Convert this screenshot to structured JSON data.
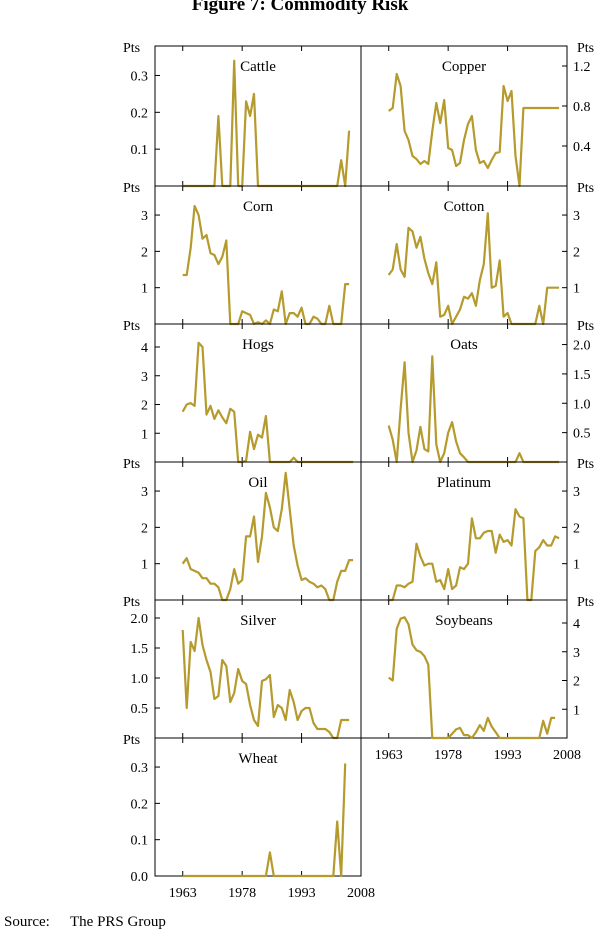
{
  "title": "Figure 7: Commodity Risk",
  "source": {
    "label": "Source:",
    "text": "The PRS Group"
  },
  "chart_data": {
    "type": "line",
    "series_color": "#B59A2E",
    "unit_label": "Pts",
    "x_ticks": [
      1963,
      1978,
      1993,
      2008
    ],
    "xlim": [
      1956,
      2008
    ],
    "panels": [
      {
        "name": "Cattle",
        "ylim": [
          0,
          0.38
        ],
        "ticks": [
          "0.1",
          "0.2",
          "0.3"
        ],
        "tick_values": [
          0.1,
          0.2,
          0.3
        ],
        "x": [
          1963,
          1971,
          1972,
          1973,
          1974,
          1975,
          1976,
          1977,
          1978,
          1979,
          1980,
          1981,
          1982,
          1983,
          2002,
          2003,
          2004,
          2005
        ],
        "y": [
          0,
          0,
          0.19,
          0,
          0,
          0,
          0.34,
          0,
          0,
          0.23,
          0.19,
          0.25,
          0,
          0,
          0,
          0.07,
          0,
          0.15
        ]
      },
      {
        "name": "Copper",
        "ylim": [
          0,
          1.4
        ],
        "ticks": [
          "0.4",
          "0.8",
          "1.2"
        ],
        "tick_values": [
          0.4,
          0.8,
          1.2
        ],
        "x": [
          1963,
          1964,
          1965,
          1966,
          1967,
          1968,
          1969,
          1970,
          1971,
          1972,
          1973,
          1974,
          1975,
          1976,
          1977,
          1978,
          1979,
          1980,
          1981,
          1982,
          1983,
          1984,
          1985,
          1986,
          1987,
          1988,
          1989,
          1990,
          1991,
          1992,
          1993,
          1994,
          1995,
          1996,
          1997,
          1998,
          1999,
          2000,
          2001,
          2002,
          2003,
          2004,
          2005,
          2006
        ],
        "y": [
          0.75,
          0.78,
          1.12,
          1.0,
          0.55,
          0.46,
          0.3,
          0.27,
          0.22,
          0.25,
          0.22,
          0.55,
          0.83,
          0.63,
          0.86,
          0.38,
          0.36,
          0.2,
          0.23,
          0.46,
          0.62,
          0.7,
          0.36,
          0.23,
          0.25,
          0.18,
          0.26,
          0.33,
          0.34,
          1.0,
          0.85,
          0.95,
          0.3,
          0,
          0.78,
          0.78,
          0.78,
          0.78,
          0.78,
          0.78,
          0.78,
          0.78,
          0.78,
          0.78
        ]
      },
      {
        "name": "Corn",
        "ylim": [
          0,
          3.8
        ],
        "ticks": [
          "1",
          "2",
          "3"
        ],
        "tick_values": [
          1,
          2,
          3
        ],
        "x": [
          1963,
          1964,
          1965,
          1966,
          1967,
          1968,
          1969,
          1970,
          1971,
          1972,
          1973,
          1974,
          1975,
          1976,
          1977,
          1978,
          1979,
          1980,
          1981,
          1982,
          1983,
          1984,
          1985,
          1986,
          1987,
          1988,
          1989,
          1990,
          1991,
          1992,
          1993,
          1994,
          1995,
          1996,
          1997,
          1998,
          1999,
          2000,
          2001,
          2002,
          2003,
          2004,
          2005
        ],
        "y": [
          1.35,
          1.35,
          2.1,
          3.25,
          3.0,
          2.35,
          2.45,
          1.95,
          1.9,
          1.65,
          1.85,
          2.3,
          0,
          0,
          0,
          0.35,
          0.3,
          0.25,
          0,
          0.05,
          0,
          0.1,
          0,
          0.4,
          0.35,
          0.9,
          0,
          0.3,
          0.3,
          0.2,
          0.45,
          0,
          0,
          0.2,
          0.15,
          0,
          0,
          0.5,
          0,
          0,
          0,
          1.1,
          1.1
        ]
      },
      {
        "name": "Cotton",
        "ylim": [
          0,
          3.8
        ],
        "ticks": [
          "1",
          "2",
          "3"
        ],
        "tick_values": [
          1,
          2,
          3
        ],
        "x": [
          1963,
          1964,
          1965,
          1966,
          1967,
          1968,
          1969,
          1970,
          1971,
          1972,
          1973,
          1974,
          1975,
          1976,
          1977,
          1978,
          1979,
          1980,
          1981,
          1982,
          1983,
          1984,
          1985,
          1986,
          1987,
          1988,
          1989,
          1990,
          1991,
          1992,
          1993,
          1994,
          1995,
          1996,
          1997,
          1998,
          1999,
          2000,
          2001,
          2002,
          2003,
          2004,
          2005,
          2006
        ],
        "y": [
          1.35,
          1.5,
          2.2,
          1.5,
          1.3,
          2.65,
          2.55,
          2.1,
          2.4,
          1.8,
          1.4,
          1.1,
          1.7,
          0.2,
          0.25,
          0.5,
          0,
          0.2,
          0.4,
          0.75,
          0.7,
          0.85,
          0.5,
          1.2,
          1.65,
          3.05,
          1.0,
          1.05,
          1.75,
          0.2,
          0.3,
          0,
          0,
          0,
          0,
          0,
          0,
          0,
          0.5,
          0,
          1.0,
          1.0,
          1.0,
          1.0
        ]
      },
      {
        "name": "Hogs",
        "ylim": [
          0,
          4.8
        ],
        "ticks": [
          "1",
          "2",
          "3",
          "4"
        ],
        "tick_values": [
          1,
          2,
          3,
          4
        ],
        "x": [
          1963,
          1964,
          1965,
          1966,
          1967,
          1968,
          1969,
          1970,
          1971,
          1972,
          1973,
          1974,
          1975,
          1976,
          1977,
          1978,
          1979,
          1980,
          1981,
          1982,
          1983,
          1984,
          1985,
          1986,
          1990,
          1991,
          1992,
          2006
        ],
        "y": [
          1.75,
          2.0,
          2.05,
          1.95,
          4.15,
          4.0,
          1.65,
          1.95,
          1.5,
          1.8,
          1.55,
          1.35,
          1.85,
          1.75,
          0,
          0,
          0.05,
          1.05,
          0.45,
          0.95,
          0.85,
          1.6,
          0,
          0,
          0,
          0.15,
          0,
          0
        ]
      },
      {
        "name": "Oats",
        "ylim": [
          0,
          2.35
        ],
        "ticks": [
          "0.5",
          "1.0",
          "1.5",
          "2.0"
        ],
        "tick_values": [
          0.5,
          1.0,
          1.5,
          2.0
        ],
        "x": [
          1963,
          1964,
          1965,
          1966,
          1967,
          1968,
          1969,
          1970,
          1971,
          1972,
          1973,
          1974,
          1975,
          1976,
          1977,
          1978,
          1979,
          1980,
          1981,
          1982,
          1983,
          1984,
          1985,
          1995,
          1996,
          1997,
          2006
        ],
        "y": [
          0.62,
          0.38,
          0,
          0.9,
          1.7,
          0.5,
          0,
          0.2,
          0.6,
          0.22,
          0.18,
          1.8,
          0.3,
          0,
          0.15,
          0.5,
          0.68,
          0.35,
          0.15,
          0.08,
          0,
          0,
          0,
          0,
          0.15,
          0,
          0
        ]
      },
      {
        "name": "Oil",
        "ylim": [
          0,
          3.8
        ],
        "ticks": [
          "1",
          "2",
          "3"
        ],
        "tick_values": [
          1,
          2,
          3
        ],
        "x": [
          1963,
          1964,
          1965,
          1966,
          1967,
          1968,
          1969,
          1970,
          1971,
          1972,
          1973,
          1974,
          1975,
          1976,
          1977,
          1978,
          1979,
          1980,
          1981,
          1982,
          1983,
          1984,
          1985,
          1986,
          1987,
          1988,
          1989,
          1990,
          1991,
          1992,
          1993,
          1994,
          1995,
          1996,
          1997,
          1998,
          1999,
          2000,
          2001,
          2002,
          2003,
          2004,
          2005,
          2006
        ],
        "y": [
          1.0,
          1.15,
          0.85,
          0.8,
          0.75,
          0.6,
          0.6,
          0.45,
          0.45,
          0.35,
          0,
          0,
          0.3,
          0.85,
          0.45,
          0.55,
          1.75,
          1.75,
          2.3,
          1.05,
          1.75,
          2.95,
          2.55,
          2.0,
          1.9,
          2.5,
          3.5,
          2.5,
          1.5,
          0.95,
          0.55,
          0.6,
          0.5,
          0.45,
          0.35,
          0.4,
          0.3,
          0,
          0,
          0.5,
          0.8,
          0.8,
          1.1,
          1.1
        ]
      },
      {
        "name": "Platinum",
        "ylim": [
          0,
          3.8
        ],
        "ticks": [
          "1",
          "2",
          "3"
        ],
        "tick_values": [
          1,
          2,
          3
        ],
        "x": [
          1963,
          1964,
          1965,
          1966,
          1967,
          1968,
          1969,
          1970,
          1971,
          1972,
          1973,
          1974,
          1975,
          1976,
          1977,
          1978,
          1979,
          1980,
          1981,
          1982,
          1983,
          1984,
          1985,
          1986,
          1987,
          1988,
          1989,
          1990,
          1991,
          1992,
          1993,
          1994,
          1995,
          1996,
          1997,
          1998,
          1999,
          2000,
          2001,
          2002,
          2003,
          2004,
          2005,
          2006
        ],
        "y": [
          0,
          0,
          0.4,
          0.4,
          0.35,
          0.45,
          0.5,
          1.55,
          1.2,
          0.95,
          1.0,
          1.0,
          0.5,
          0.55,
          0.3,
          0.85,
          0.3,
          0.4,
          0.9,
          0.85,
          1.0,
          2.25,
          1.7,
          1.7,
          1.85,
          1.9,
          1.9,
          1.3,
          1.8,
          1.6,
          1.65,
          1.5,
          2.5,
          2.3,
          2.25,
          0,
          0,
          1.35,
          1.45,
          1.65,
          1.5,
          1.5,
          1.75,
          1.7
        ]
      },
      {
        "name": "Silver",
        "ylim": [
          0,
          2.3
        ],
        "ticks": [
          "0.5",
          "1.0",
          "1.5",
          "2.0"
        ],
        "tick_values": [
          0.5,
          1.0,
          1.5,
          2.0
        ],
        "x": [
          1963,
          1964,
          1965,
          1966,
          1967,
          1968,
          1969,
          1970,
          1971,
          1972,
          1973,
          1974,
          1975,
          1976,
          1977,
          1978,
          1979,
          1980,
          1981,
          1982,
          1983,
          1984,
          1985,
          1986,
          1987,
          1988,
          1989,
          1990,
          1991,
          1992,
          1993,
          1994,
          1995,
          1996,
          1997,
          1998,
          1999,
          2000,
          2001,
          2002,
          2003,
          2004,
          2005
        ],
        "y": [
          1.8,
          0.5,
          1.6,
          1.45,
          2.0,
          1.55,
          1.3,
          1.1,
          0.65,
          0.7,
          1.3,
          1.2,
          0.6,
          0.75,
          1.15,
          0.95,
          0.9,
          0.55,
          0.3,
          0.2,
          0.95,
          0.98,
          1.05,
          0.35,
          0.55,
          0.5,
          0.3,
          0.8,
          0.6,
          0.3,
          0.45,
          0.5,
          0.5,
          0.25,
          0.15,
          0.15,
          0.15,
          0.1,
          0,
          0,
          0.3,
          0.3,
          0.3
        ]
      },
      {
        "name": "Soybeans",
        "ylim": [
          0,
          4.8
        ],
        "ticks": [
          "1",
          "2",
          "3",
          "4"
        ],
        "tick_values": [
          1,
          2,
          3,
          4
        ],
        "x": [
          1963,
          1964,
          1965,
          1966,
          1967,
          1968,
          1969,
          1970,
          1971,
          1972,
          1973,
          1974,
          1975,
          1976,
          1977,
          1978,
          1979,
          1980,
          1981,
          1982,
          1983,
          1984,
          1985,
          1986,
          1987,
          1988,
          1989,
          1990,
          1991,
          2001,
          2002,
          2003,
          2004,
          2005
        ],
        "y": [
          2.1,
          2.0,
          3.8,
          4.15,
          4.2,
          3.95,
          3.25,
          3.05,
          3.0,
          2.85,
          2.55,
          0,
          0,
          0,
          0,
          0,
          0.15,
          0.3,
          0.35,
          0.1,
          0.1,
          0,
          0.2,
          0.45,
          0.25,
          0.7,
          0.4,
          0.2,
          0,
          0,
          0.6,
          0.15,
          0.7,
          0.7
        ]
      },
      {
        "name": "Wheat",
        "ylim": [
          0,
          0.38
        ],
        "ticks": [
          "0.0",
          "0.1",
          "0.2",
          "0.3"
        ],
        "tick_values": [
          0.0,
          0.1,
          0.2,
          0.3
        ],
        "x": [
          1963,
          1983,
          1984,
          1985,
          1986,
          1987,
          1988,
          1989,
          1990,
          2000,
          2001,
          2002,
          2003,
          2004
        ],
        "y": [
          0,
          0,
          0,
          0.065,
          0,
          0,
          0,
          0,
          0,
          0,
          0,
          0.15,
          0,
          0.31
        ]
      }
    ]
  }
}
